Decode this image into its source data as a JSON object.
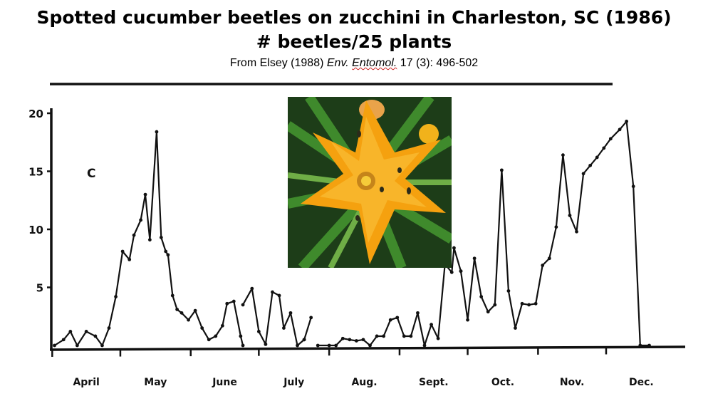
{
  "header": {
    "title": "Spotted cucumber beetles on zucchini in Charleston, SC (1986)",
    "subtitle": "# beetles/25 plants",
    "source_prefix": "From Elsey (1988) ",
    "source_journal_a": "Env.",
    "source_journal_b": "Entomol.",
    "source_suffix": " 17 (3): 496-502"
  },
  "colors": {
    "line": "#111111",
    "petal": "#f5a10f",
    "leaf": "#2f6e22"
  },
  "photo": {
    "icon": "zucchini-flower-photo"
  },
  "chart_data": {
    "type": "line",
    "panel_label": "C",
    "title": "",
    "xlabel": "",
    "ylabel": "",
    "x_unit": "day of 1986 (month-end = 0)",
    "months": [
      "April",
      "May",
      "June",
      "July",
      "Aug.",
      "Sept.",
      "Oct.",
      "Nov.",
      "Dec."
    ],
    "month_day_offsets": [
      90,
      120,
      151,
      181,
      212,
      243,
      273,
      304,
      334
    ],
    "ylim": [
      0,
      20
    ],
    "yticks": [
      5,
      10,
      15,
      20
    ],
    "series": [
      {
        "x": [
          91,
          95,
          98,
          101,
          105,
          109,
          112,
          115,
          118,
          121,
          124,
          126,
          129,
          131,
          133,
          136,
          138,
          140,
          141,
          143,
          145,
          147,
          150,
          153,
          156,
          159,
          162,
          165,
          167,
          170,
          173,
          174
        ],
        "y": [
          0,
          0.5,
          1.2,
          0,
          1.2,
          0.8,
          0,
          1.5,
          4.2,
          8.1,
          7.4,
          9.5,
          10.8,
          13,
          9.1,
          18.4,
          9.3,
          8.1,
          7.8,
          4.3,
          3.1,
          2.8,
          2.2,
          3,
          1.5,
          0.5,
          0.8,
          1.7,
          3.6,
          3.8,
          0.8,
          0
        ]
      },
      {
        "x": [
          174,
          178,
          181,
          184,
          187,
          190,
          192,
          195,
          198,
          201
        ],
        "y": [
          3.5,
          4.9,
          1.2,
          0.1,
          4.6,
          4.3,
          1.5,
          2.8,
          0,
          0.5
        ]
      },
      {
        "x": [
          201,
          204
        ],
        "y": [
          0.5,
          2.4
        ]
      },
      {
        "x": [
          207,
          212,
          215,
          218,
          221,
          224,
          227,
          230,
          233,
          236,
          239,
          242,
          245,
          248,
          251,
          254,
          257,
          260,
          263,
          266,
          267,
          270
        ],
        "y": [
          0,
          0,
          0,
          0.6,
          0.5,
          0.4,
          0.5,
          0,
          0.8,
          0.8,
          2.2,
          2.4,
          0.8,
          0.8,
          2.8,
          0,
          1.8,
          0.6,
          7,
          6.3,
          8.4,
          6.4
        ]
      },
      {
        "x": [
          270,
          273,
          276,
          279,
          282,
          285,
          288,
          291,
          294,
          297,
          300,
          303,
          306,
          309,
          312,
          315,
          318,
          321,
          324,
          327,
          330,
          333,
          336,
          340,
          343,
          346,
          349,
          353
        ],
        "y": [
          6.4,
          2.2,
          7.5,
          4.2,
          2.9,
          3.5,
          15.1,
          4.7,
          1.5,
          3.6,
          3.5,
          3.6,
          6.9,
          7.5,
          10.2,
          16.4,
          11.2,
          9.8,
          14.8,
          15.5,
          16.2,
          17,
          17.8,
          18.6,
          19.3,
          13.7,
          0,
          0
        ]
      }
    ]
  }
}
